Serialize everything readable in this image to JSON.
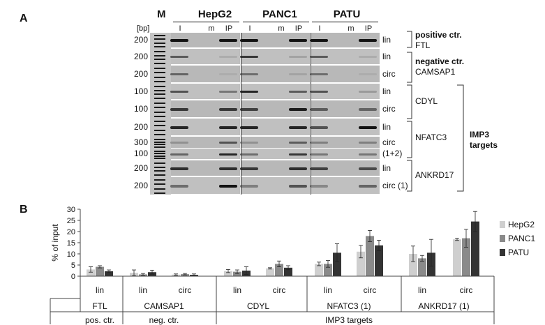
{
  "panel_a": {
    "letter": "A",
    "marker_label": "M",
    "bp_label": "[bp]",
    "cell_lines": [
      "HepG2",
      "PANC1",
      "PATU"
    ],
    "lane_labels": [
      "I",
      "m",
      "IP"
    ],
    "rows": [
      {
        "bp": "200",
        "label": "lin",
        "intensity": [
          [
            0.95,
            0,
            0.95
          ],
          [
            0.95,
            0,
            0.95
          ],
          [
            0.95,
            0,
            0.95
          ]
        ]
      },
      {
        "bp": "200",
        "label": "lin",
        "intensity": [
          [
            0.55,
            0,
            0.1
          ],
          [
            0.75,
            0,
            0.15
          ],
          [
            0.55,
            0,
            0.1
          ]
        ]
      },
      {
        "bp": "200",
        "label": "circ",
        "intensity": [
          [
            0.5,
            0,
            0.1
          ],
          [
            0.45,
            0,
            0.15
          ],
          [
            0.45,
            0,
            0.1
          ]
        ]
      },
      {
        "bp": "100",
        "label": "lin",
        "intensity": [
          [
            0.6,
            0,
            0.4
          ],
          [
            0.85,
            0,
            0.55
          ],
          [
            0.6,
            0,
            0.2
          ]
        ]
      },
      {
        "bp": "100",
        "label": "circ",
        "intensity": [
          [
            0.75,
            0,
            0.75
          ],
          [
            0.7,
            0,
            0.9
          ],
          [
            0.55,
            0,
            0.5
          ]
        ]
      },
      {
        "bp": "200",
        "label": "lin",
        "intensity": [
          [
            0.85,
            0,
            0.85
          ],
          [
            0.85,
            0,
            0.85
          ],
          [
            0.6,
            0,
            0.95
          ]
        ]
      },
      {
        "bp": "300",
        "label": "circ",
        "intensity": [
          [
            0.25,
            0,
            0.6
          ],
          [
            0.25,
            0,
            0.55
          ],
          [
            0.35,
            0,
            0.35
          ]
        ]
      },
      {
        "bp": "100",
        "label": "(1+2)",
        "intensity": [
          [
            0.5,
            0,
            0.85
          ],
          [
            0.45,
            0,
            0.75
          ],
          [
            0.4,
            0,
            0.4
          ]
        ]
      },
      {
        "bp": "200",
        "label": "lin",
        "intensity": [
          [
            0.8,
            0,
            0.8
          ],
          [
            0.75,
            0,
            0.8
          ],
          [
            0.7,
            0,
            0.65
          ]
        ]
      },
      {
        "bp": "200",
        "label": "circ (1)",
        "intensity": [
          [
            0.45,
            0,
            0.95
          ],
          [
            0.35,
            0,
            0.6
          ],
          [
            0.3,
            0,
            0.5
          ]
        ]
      }
    ],
    "groups": [
      {
        "title": "positive ctr.",
        "name": "FTL"
      },
      {
        "title": "negative ctr.",
        "name": "CAMSAP1"
      },
      {
        "title": "",
        "name": "CDYL"
      },
      {
        "title": "",
        "name": "NFATC3"
      },
      {
        "title": "",
        "name": "ANKRD17"
      }
    ],
    "targets_label": [
      "IMP3",
      "targets"
    ]
  },
  "panel_b": {
    "letter": "B",
    "legend_position": "right",
    "colors": {
      "HepG2": "#cfcfcf",
      "PANC1": "#8a8a8a",
      "PATU": "#333333"
    },
    "row1_labels": [
      "lin",
      "lin",
      "circ",
      "lin",
      "circ",
      "lin",
      "circ",
      "lin",
      "circ"
    ],
    "row2_labels": [
      "FTL",
      "CAMSAP1",
      "CDYL",
      "NFATC3 (1)",
      "ANKRD17 (1)"
    ],
    "row3_labels": [
      "pos. ctr.",
      "neg. ctr.",
      "IMP3 targets"
    ]
  },
  "chart_data": {
    "type": "bar",
    "ylabel": "% of input",
    "ylim": [
      0,
      30
    ],
    "yticks": [
      0,
      5,
      10,
      15,
      20,
      25,
      30
    ],
    "grid": false,
    "categories": [
      "FTL lin",
      "CAMSAP1 lin",
      "CAMSAP1 circ",
      "CDYL lin",
      "CDYL circ",
      "NFATC3 (1) lin",
      "NFATC3 (1) circ",
      "ANKRD17 (1) lin",
      "ANKRD17 (1) circ"
    ],
    "series": [
      {
        "name": "HepG2",
        "values": [
          3.0,
          1.5,
          0.7,
          2.3,
          3.5,
          5.5,
          11.0,
          10.0,
          16.5
        ],
        "errors": [
          1.2,
          1.3,
          0.3,
          0.7,
          0.3,
          0.8,
          2.8,
          3.5,
          0.5
        ]
      },
      {
        "name": "PANC1",
        "values": [
          4.2,
          0.8,
          0.9,
          2.0,
          5.5,
          5.5,
          18.0,
          8.0,
          17.0
        ],
        "errors": [
          0.5,
          0.4,
          0.3,
          0.8,
          1.3,
          1.5,
          2.5,
          1.3,
          4.0
        ]
      },
      {
        "name": "PATU",
        "values": [
          2.2,
          1.8,
          0.6,
          2.5,
          3.8,
          10.5,
          13.8,
          10.5,
          24.5
        ],
        "errors": [
          0.6,
          0.9,
          0.4,
          1.7,
          0.9,
          4.0,
          2.3,
          6.0,
          4.5
        ]
      }
    ]
  }
}
